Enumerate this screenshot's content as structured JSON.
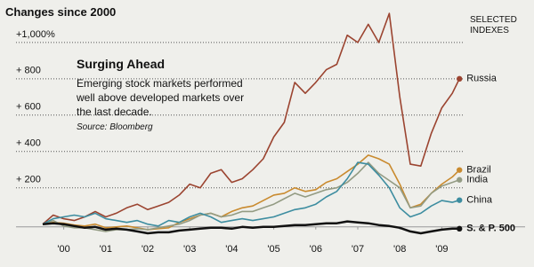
{
  "chart_data": {
    "type": "line",
    "title": "Changes since 2000",
    "legend_title": "SELECTED INDEXES",
    "annotation_title": "Surging Ahead",
    "annotation_text": "Emerging stock markets performed well above developed markets over the last decade.",
    "source": "Source: Bloomberg",
    "x": [
      2000,
      2000.25,
      2000.5,
      2000.75,
      2001,
      2001.25,
      2001.5,
      2001.75,
      2002,
      2002.25,
      2002.5,
      2002.75,
      2003,
      2003.25,
      2003.5,
      2003.75,
      2004,
      2004.25,
      2004.5,
      2004.75,
      2005,
      2005.25,
      2005.5,
      2005.75,
      2006,
      2006.25,
      2006.5,
      2006.75,
      2007,
      2007.25,
      2007.5,
      2007.75,
      2008,
      2008.25,
      2008.5,
      2008.75,
      2009,
      2009.25,
      2009.5,
      2009.75,
      2009.92
    ],
    "xlim": [
      2000,
      2010
    ],
    "xticks": [
      {
        "value": 2000.5,
        "label": "'00"
      },
      {
        "value": 2001.5,
        "label": "'01"
      },
      {
        "value": 2002.5,
        "label": "'02"
      },
      {
        "value": 2003.5,
        "label": "'03"
      },
      {
        "value": 2004.5,
        "label": "'04"
      },
      {
        "value": 2005.5,
        "label": "'05"
      },
      {
        "value": 2006.5,
        "label": "'06"
      },
      {
        "value": 2007.5,
        "label": "'07"
      },
      {
        "value": 2008.5,
        "label": "'08"
      },
      {
        "value": 2009.5,
        "label": "'09"
      }
    ],
    "ylim": [
      -60,
      1180
    ],
    "yticks": [
      {
        "value": 200,
        "label": "+   200"
      },
      {
        "value": 400,
        "label": "+   400"
      },
      {
        "value": 600,
        "label": "+   600"
      },
      {
        "value": 800,
        "label": "+   800"
      },
      {
        "value": 1000,
        "label": "+1,000%"
      }
    ],
    "grid": true,
    "series": [
      {
        "name": "Russia",
        "color": "#9b4430",
        "values": [
          0,
          50,
          30,
          20,
          40,
          70,
          40,
          60,
          90,
          110,
          80,
          100,
          120,
          160,
          220,
          200,
          280,
          300,
          230,
          250,
          300,
          360,
          480,
          560,
          780,
          720,
          780,
          850,
          880,
          1040,
          1000,
          1100,
          1000,
          1160,
          700,
          330,
          320,
          500,
          640,
          720,
          800
        ]
      },
      {
        "name": "Brazil",
        "color": "#c98a2e",
        "values": [
          0,
          10,
          5,
          -5,
          -10,
          0,
          -20,
          -15,
          -10,
          -20,
          -30,
          -25,
          -20,
          10,
          30,
          50,
          60,
          40,
          70,
          90,
          100,
          130,
          160,
          170,
          200,
          180,
          190,
          230,
          250,
          290,
          330,
          380,
          360,
          330,
          220,
          90,
          110,
          170,
          220,
          260,
          298
        ]
      },
      {
        "name": "India",
        "color": "#939b83",
        "values": [
          0,
          20,
          -10,
          -20,
          -20,
          -30,
          -40,
          -30,
          -30,
          -25,
          -30,
          -20,
          -10,
          0,
          20,
          50,
          60,
          40,
          50,
          70,
          70,
          90,
          110,
          140,
          170,
          150,
          170,
          190,
          200,
          230,
          280,
          340,
          280,
          240,
          200,
          90,
          100,
          170,
          210,
          230,
          244
        ]
      },
      {
        "name": "China",
        "color": "#3d8da0",
        "values": [
          0,
          30,
          40,
          50,
          40,
          60,
          30,
          20,
          10,
          20,
          0,
          -10,
          20,
          10,
          40,
          60,
          40,
          10,
          20,
          30,
          20,
          30,
          40,
          60,
          80,
          90,
          110,
          150,
          180,
          250,
          340,
          330,
          270,
          200,
          90,
          40,
          60,
          100,
          130,
          120,
          132
        ]
      },
      {
        "name": "S. & P. 500",
        "color": "#111111",
        "values": [
          0,
          5,
          0,
          -10,
          -20,
          -15,
          -30,
          -25,
          -30,
          -40,
          -50,
          -45,
          -45,
          -35,
          -30,
          -25,
          -20,
          -20,
          -25,
          -15,
          -20,
          -15,
          -15,
          -10,
          -5,
          -5,
          0,
          5,
          5,
          15,
          10,
          5,
          -5,
          -10,
          -20,
          -40,
          -50,
          -40,
          -30,
          -25,
          -25
        ]
      }
    ]
  }
}
